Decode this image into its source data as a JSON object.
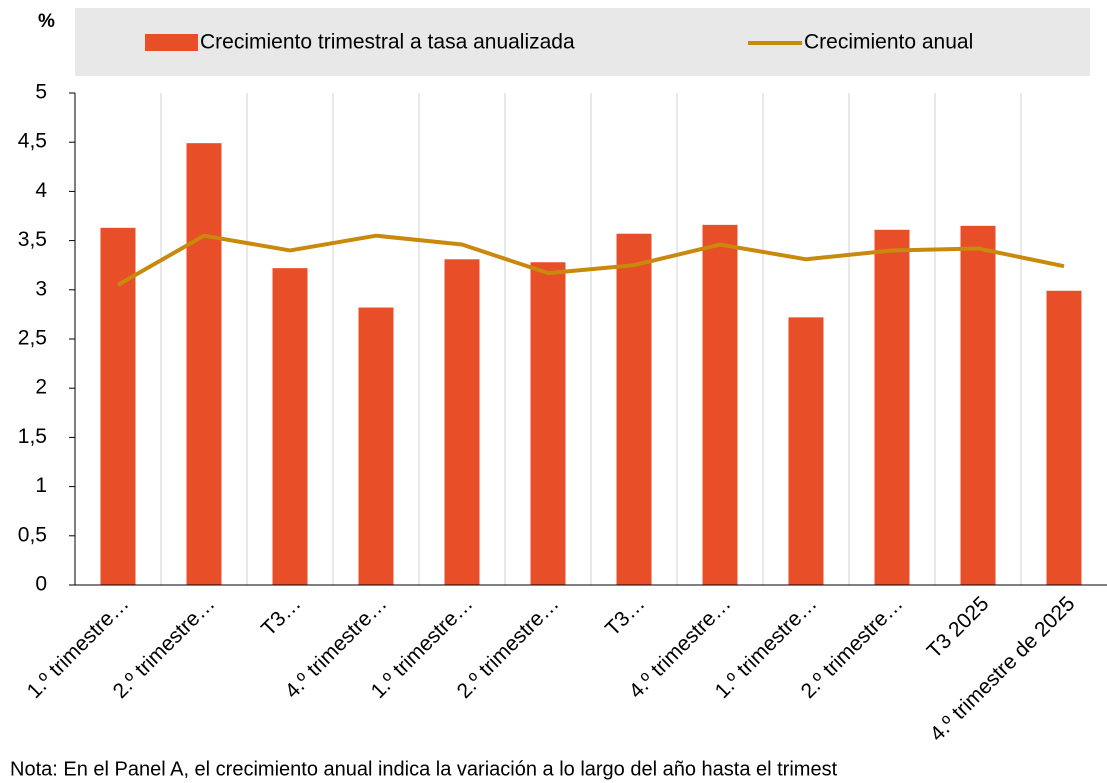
{
  "chart_data": {
    "type": "bar",
    "y_unit": "%",
    "categories": [
      "1.º trimestre…",
      "2.º trimestre…",
      "T3…",
      "4.º trimestre…",
      "1.º trimestre…",
      "2.º trimestre…",
      "T3…",
      "4.º trimestre…",
      "1.º trimestre…",
      "2.º trimestre…",
      "T3 2025",
      "4.º trimestre de 2025"
    ],
    "series": [
      {
        "name": "Crecimiento trimestral a tasa anualizada",
        "type": "bar",
        "color": "#e84e27",
        "values": [
          3.63,
          4.49,
          3.22,
          2.82,
          3.31,
          3.28,
          3.57,
          3.66,
          2.72,
          3.61,
          3.65,
          2.99
        ]
      },
      {
        "name": "Crecimiento anual",
        "type": "line",
        "color": "#c8890c",
        "values": [
          3.05,
          3.55,
          3.4,
          3.55,
          3.46,
          3.17,
          3.25,
          3.46,
          3.31,
          3.4,
          3.42,
          3.24
        ]
      }
    ],
    "ylim": [
      0,
      5
    ],
    "yticks": [
      0,
      {
        "value": 0.5,
        "label": "0,5"
      },
      1,
      {
        "value": 1.5,
        "label": "1,5"
      },
      2,
      {
        "value": 2.5,
        "label": "2,5"
      },
      3,
      {
        "value": 3.5,
        "label": "3,5"
      },
      4,
      {
        "value": 4.5,
        "label": "4,5"
      },
      5
    ],
    "legend": "top",
    "note": "Nota:  En el Panel A, el crecimiento anual indica la variación a lo largo del año hasta el trimest"
  }
}
